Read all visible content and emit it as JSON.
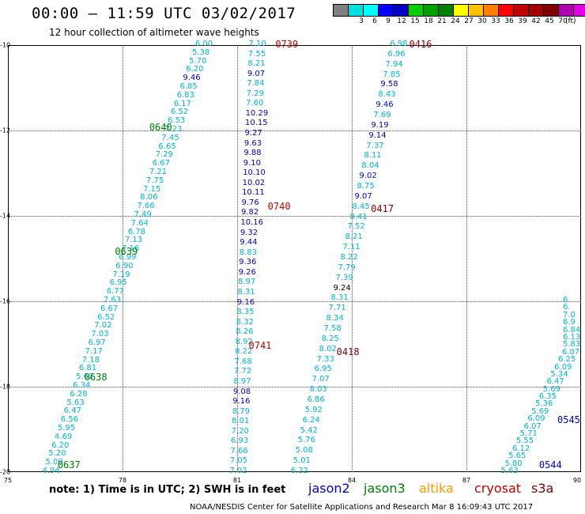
{
  "header": {
    "title": "00:00 – 11:59 UTC 03/02/2017",
    "subtitle": "12 hour collection of altimeter wave heights"
  },
  "colorbar": {
    "colors": [
      "#808080",
      "#00e0e0",
      "#00ffff",
      "#0000ff",
      "#0000c0",
      "#00d000",
      "#00a000",
      "#008000",
      "#ffff00",
      "#ffc000",
      "#ff8000",
      "#ff0000",
      "#c00000",
      "#a00000",
      "#800000",
      "#b000b0",
      "#e000e0",
      "#000000"
    ],
    "labels": [
      "3",
      "6",
      "9",
      "12",
      "15",
      "18",
      "21",
      "24",
      "27",
      "30",
      "33",
      "36",
      "39",
      "42",
      "45",
      "70"
    ],
    "unit": "(ft)"
  },
  "axes": {
    "x_ticks": [
      "75",
      "78",
      "81",
      "84",
      "87",
      "90"
    ],
    "y_ticks": [
      "-10",
      "-12",
      "-14",
      "-16",
      "-18",
      "-20"
    ]
  },
  "legend": {
    "note": "note: 1) Time is in UTC; 2) SWH is in feet",
    "satellites": [
      {
        "name": "jason2",
        "color": "#0000c8"
      },
      {
        "name": "jason3",
        "color": "#008000"
      },
      {
        "name": "altika",
        "color": "#ff9900"
      },
      {
        "name": "cryosat",
        "color": "#c00000"
      },
      {
        "name": "s3a",
        "color": "#800000"
      }
    ]
  },
  "credit": "NOAA/NESDIS Center for Satellite Applications and Research    Mar  8 16:09:43 UTC 2017",
  "tracks": [
    {
      "lon_start": 75.9,
      "lat_start": -20.0,
      "lon_end": 79.9,
      "lat_end": -10.0,
      "values": [
        [
          "4.94",
          "c"
        ],
        [
          "5.00",
          "c"
        ],
        [
          "5.20",
          "c"
        ],
        [
          "6.20",
          "c"
        ],
        [
          "4.69",
          "c"
        ],
        [
          "5.95",
          "c"
        ],
        [
          "6.56",
          "c"
        ],
        [
          "6.47",
          "c"
        ],
        [
          "5.63",
          "c"
        ],
        [
          "6.28",
          "c"
        ],
        [
          "6.34",
          "c"
        ],
        [
          "5.62",
          "c"
        ],
        [
          "6.81",
          "c"
        ],
        [
          "7.18",
          "c"
        ],
        [
          "7.17",
          "c"
        ],
        [
          "6.97",
          "c"
        ],
        [
          "7.03",
          "c"
        ],
        [
          "7.02",
          "c"
        ],
        [
          "6.52",
          "c"
        ],
        [
          "6.67",
          "c"
        ],
        [
          "7.63",
          "c"
        ],
        [
          "6.77",
          "c"
        ],
        [
          "6.95",
          "c"
        ],
        [
          "7.19",
          "c"
        ],
        [
          "6.90",
          "c"
        ],
        [
          "6.99",
          "c"
        ],
        [
          "7.16",
          "c"
        ],
        [
          "7.13",
          "c"
        ],
        [
          "6.78",
          "c"
        ],
        [
          "7.64",
          "c"
        ],
        [
          "7.49",
          "c"
        ],
        [
          "7.66",
          "c"
        ],
        [
          "8.06",
          "c"
        ],
        [
          "7.15",
          "c"
        ],
        [
          "7.75",
          "c"
        ],
        [
          "7.21",
          "c"
        ],
        [
          "6.67",
          "c"
        ],
        [
          "7.29",
          "c"
        ],
        [
          "6.65",
          "c"
        ],
        [
          "7.45",
          "c"
        ],
        [
          "7.23",
          "c"
        ],
        [
          "6.53",
          "c"
        ],
        [
          "6.52",
          "c"
        ],
        [
          "6.17",
          "c"
        ],
        [
          "6.83",
          "c"
        ],
        [
          "6.85",
          "c"
        ],
        [
          "9.46",
          "b"
        ],
        [
          "6.20",
          "c"
        ],
        [
          "5.70",
          "c"
        ],
        [
          "5.38",
          "c"
        ],
        [
          "6.00",
          "c"
        ]
      ]
    },
    {
      "lon_start": 80.8,
      "lat_start": -20.0,
      "lon_end": 81.3,
      "lat_end": -10.0,
      "values": [
        [
          "7.02",
          "c"
        ],
        [
          "7.05",
          "c"
        ],
        [
          "7.66",
          "c"
        ],
        [
          "6.93",
          "c"
        ],
        [
          "7.20",
          "c"
        ],
        [
          "8.01",
          "c"
        ],
        [
          "8.79",
          "c"
        ],
        [
          "9.16",
          "b"
        ],
        [
          "9.08",
          "b"
        ],
        [
          "8.97",
          "c"
        ],
        [
          "7.72",
          "c"
        ],
        [
          "7.68",
          "c"
        ],
        [
          "8.22",
          "c"
        ],
        [
          "8.92",
          "c"
        ],
        [
          "8.26",
          "c"
        ],
        [
          "8.32",
          "c"
        ],
        [
          "8.35",
          "c"
        ],
        [
          "9.16",
          "b"
        ],
        [
          "8.31",
          "c"
        ],
        [
          "8.97",
          "c"
        ],
        [
          "9.26",
          "b"
        ],
        [
          "9.36",
          "b"
        ],
        [
          "8.83",
          "c"
        ],
        [
          "9.44",
          "b"
        ],
        [
          "9.32",
          "b"
        ],
        [
          "10.16",
          "b"
        ],
        [
          "9.82",
          "b"
        ],
        [
          "9.76",
          "b"
        ],
        [
          "10.11",
          "b"
        ],
        [
          "10.02",
          "b"
        ],
        [
          "10.10",
          "b"
        ],
        [
          "9.10",
          "b"
        ],
        [
          "9.88",
          "b"
        ],
        [
          "9.63",
          "b"
        ],
        [
          "9.27",
          "b"
        ],
        [
          "10.15",
          "b"
        ],
        [
          "10.29",
          "b"
        ],
        [
          "7.60",
          "c"
        ],
        [
          "7.29",
          "c"
        ],
        [
          "7.84",
          "c"
        ],
        [
          "9.07",
          "b"
        ],
        [
          "8.21",
          "c"
        ],
        [
          "7.55",
          "c"
        ],
        [
          "7.10",
          "c"
        ]
      ]
    },
    {
      "lon_start": 82.4,
      "lat_start": -20.0,
      "lon_end": 85.0,
      "lat_end": -10.0,
      "values": [
        [
          "6.22",
          "c"
        ],
        [
          "5.01",
          "c"
        ],
        [
          "5.08",
          "c"
        ],
        [
          "5.76",
          "c"
        ],
        [
          "5.42",
          "c"
        ],
        [
          "6.24",
          "c"
        ],
        [
          "5.92",
          "c"
        ],
        [
          "6.86",
          "c"
        ],
        [
          "8.03",
          "c"
        ],
        [
          "7.07",
          "c"
        ],
        [
          "6.95",
          "c"
        ],
        [
          "7.33",
          "c"
        ],
        [
          "8.02",
          "c"
        ],
        [
          "8.25",
          "c"
        ],
        [
          "7.58",
          "c"
        ],
        [
          "8.34",
          "c"
        ],
        [
          "7.71",
          "c"
        ],
        [
          "8.31",
          "c"
        ],
        [
          "9.24",
          "k"
        ],
        [
          "7.39",
          "c"
        ],
        [
          "7.79",
          "c"
        ],
        [
          "8.22",
          "c"
        ],
        [
          "7.11",
          "c"
        ],
        [
          "8.21",
          "c"
        ],
        [
          "7.52",
          "c"
        ],
        [
          "8.41",
          "c"
        ],
        [
          "8.45",
          "c"
        ],
        [
          "9.07",
          "b"
        ],
        [
          "8.75",
          "c"
        ],
        [
          "9.02",
          "b"
        ],
        [
          "8.04",
          "c"
        ],
        [
          "8.11",
          "c"
        ],
        [
          "7.37",
          "c"
        ],
        [
          "9.14",
          "b"
        ],
        [
          "9.19",
          "b"
        ],
        [
          "7.69",
          "c"
        ],
        [
          "9.46",
          "b"
        ],
        [
          "8.43",
          "c"
        ],
        [
          "9.58",
          "b"
        ],
        [
          "7.85",
          "c"
        ],
        [
          "7.94",
          "c"
        ],
        [
          "6.96",
          "c"
        ],
        [
          "6.98",
          "c"
        ]
      ]
    },
    {
      "lon_start": 87.9,
      "lat_start": -20.0,
      "lon_end": 90.2,
      "lat_end": -16.0,
      "values": [
        [
          "5.63",
          "c"
        ],
        [
          "5.80",
          "c"
        ],
        [
          "5.65",
          "c"
        ],
        [
          "6.12",
          "c"
        ],
        [
          "5.55",
          "c"
        ],
        [
          "5.71",
          "c"
        ],
        [
          "6.07",
          "c"
        ],
        [
          "6.09",
          "c"
        ],
        [
          "5.69",
          "c"
        ],
        [
          "5.36",
          "c"
        ],
        [
          "6.35",
          "c"
        ],
        [
          "5.69",
          "c"
        ],
        [
          "6.47",
          "c"
        ],
        [
          "5.34",
          "c"
        ],
        [
          "6.09",
          "c"
        ],
        [
          "6.25",
          "c"
        ],
        [
          "6.07",
          "c"
        ],
        [
          "5.83",
          "c"
        ],
        [
          "6.13",
          "c"
        ],
        [
          "6.84",
          "c"
        ],
        [
          "6.9",
          "c"
        ],
        [
          "7.0",
          "c"
        ],
        [
          "6.",
          "c"
        ],
        [
          "6",
          "c"
        ]
      ]
    }
  ],
  "pass_labels": [
    {
      "text": "0739",
      "color": "#c00000",
      "lon": 82.0,
      "lat": -10.0
    },
    {
      "text": "0416",
      "color": "#800000",
      "lon": 85.5,
      "lat": -10.0
    },
    {
      "text": "0640",
      "color": "#008000",
      "lon": 78.7,
      "lat": -11.95
    },
    {
      "text": "0740",
      "color": "#c00000",
      "lon": 81.8,
      "lat": -13.8
    },
    {
      "text": "0417",
      "color": "#800000",
      "lon": 84.5,
      "lat": -13.85
    },
    {
      "text": "0639",
      "color": "#008000",
      "lon": 77.8,
      "lat": -14.85
    },
    {
      "text": "0741",
      "color": "#c00000",
      "lon": 81.3,
      "lat": -17.05
    },
    {
      "text": "0418",
      "color": "#800000",
      "lon": 83.6,
      "lat": -17.2
    },
    {
      "text": "0638",
      "color": "#008000",
      "lon": 77.0,
      "lat": -17.8
    },
    {
      "text": "0545",
      "color": "#0000c8",
      "lon": 89.4,
      "lat": -18.8
    },
    {
      "text": "0637",
      "color": "#008000",
      "lon": 76.3,
      "lat": -19.85
    },
    {
      "text": "0544",
      "color": "#0000c8",
      "lon": 88.9,
      "lat": -19.85
    }
  ]
}
